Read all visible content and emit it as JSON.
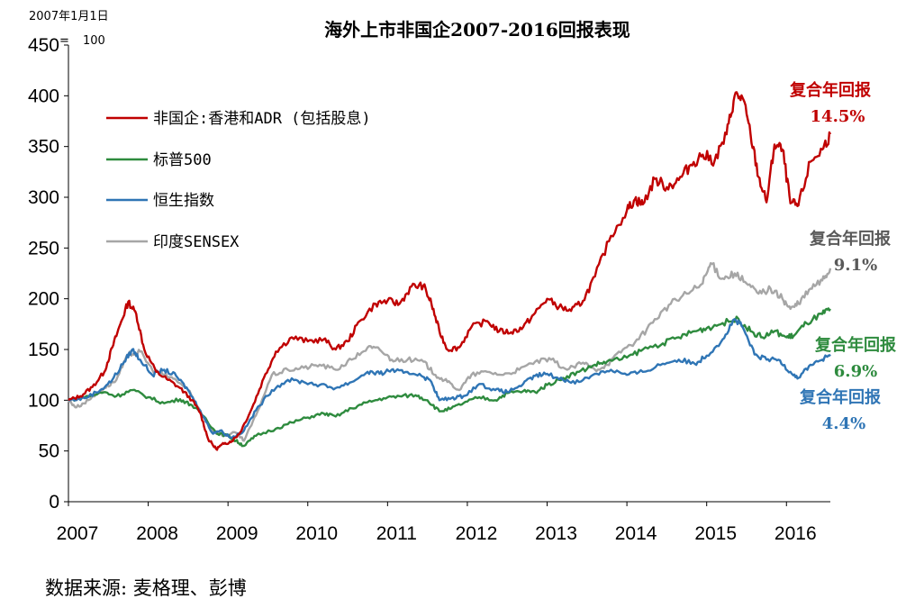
{
  "chart_data": {
    "type": "line",
    "title": "海外上市非国企2007-2016回报表现",
    "ylabel_note_line1": "2007年1月1日",
    "ylabel_note_line2": "=",
    "ylabel_note_value": "100",
    "ylim": [
      0,
      450
    ],
    "yticks": [
      "0",
      "50",
      "100",
      "150",
      "200",
      "250",
      "300",
      "350",
      "400",
      "450"
    ],
    "xlim": [
      2007,
      2016.55
    ],
    "xticks": [
      "2007",
      "2008",
      "2009",
      "2010",
      "2011",
      "2012",
      "2013",
      "2014",
      "2015",
      "2016"
    ],
    "series": [
      {
        "name": "非国企:香港和ADR (包括股息)",
        "color": "#C00000",
        "points": [
          [
            2007,
            100
          ],
          [
            2007.15,
            104
          ],
          [
            2007.3,
            113
          ],
          [
            2007.45,
            128
          ],
          [
            2007.55,
            152
          ],
          [
            2007.65,
            175
          ],
          [
            2007.75,
            197
          ],
          [
            2007.85,
            185
          ],
          [
            2007.95,
            150
          ],
          [
            2008.1,
            128
          ],
          [
            2008.25,
            120
          ],
          [
            2008.4,
            112
          ],
          [
            2008.55,
            100
          ],
          [
            2008.65,
            88
          ],
          [
            2008.75,
            62
          ],
          [
            2008.85,
            52
          ],
          [
            2008.95,
            57
          ],
          [
            2009.05,
            60
          ],
          [
            2009.15,
            68
          ],
          [
            2009.3,
            92
          ],
          [
            2009.45,
            122
          ],
          [
            2009.6,
            148
          ],
          [
            2009.8,
            162
          ],
          [
            2010.0,
            158
          ],
          [
            2010.2,
            160
          ],
          [
            2010.35,
            150
          ],
          [
            2010.5,
            158
          ],
          [
            2010.65,
            178
          ],
          [
            2010.85,
            195
          ],
          [
            2011.0,
            198
          ],
          [
            2011.15,
            195
          ],
          [
            2011.3,
            212
          ],
          [
            2011.45,
            213
          ],
          [
            2011.55,
            195
          ],
          [
            2011.65,
            168
          ],
          [
            2011.75,
            150
          ],
          [
            2011.9,
            152
          ],
          [
            2012.05,
            172
          ],
          [
            2012.25,
            178
          ],
          [
            2012.4,
            168
          ],
          [
            2012.55,
            167
          ],
          [
            2012.7,
            172
          ],
          [
            2012.85,
            186
          ],
          [
            2013.0,
            200
          ],
          [
            2013.15,
            192
          ],
          [
            2013.3,
            188
          ],
          [
            2013.45,
            198
          ],
          [
            2013.6,
            222
          ],
          [
            2013.8,
            262
          ],
          [
            2014.0,
            287
          ],
          [
            2014.1,
            298
          ],
          [
            2014.2,
            293
          ],
          [
            2014.35,
            318
          ],
          [
            2014.5,
            310
          ],
          [
            2014.65,
            317
          ],
          [
            2014.8,
            332
          ],
          [
            2014.95,
            342
          ],
          [
            2015.1,
            336
          ],
          [
            2015.25,
            362
          ],
          [
            2015.35,
            400
          ],
          [
            2015.45,
            398
          ],
          [
            2015.55,
            362
          ],
          [
            2015.65,
            320
          ],
          [
            2015.75,
            295
          ],
          [
            2015.85,
            352
          ],
          [
            2015.95,
            347
          ],
          [
            2016.05,
            294
          ],
          [
            2016.15,
            292
          ],
          [
            2016.3,
            335
          ],
          [
            2016.45,
            347
          ],
          [
            2016.55,
            362
          ]
        ]
      },
      {
        "name": "标普500",
        "color": "#2E8B3E",
        "points": [
          [
            2007,
            100
          ],
          [
            2007.2,
            103
          ],
          [
            2007.45,
            108
          ],
          [
            2007.6,
            104
          ],
          [
            2007.8,
            110
          ],
          [
            2008.0,
            103
          ],
          [
            2008.2,
            97
          ],
          [
            2008.4,
            101
          ],
          [
            2008.55,
            95
          ],
          [
            2008.7,
            84
          ],
          [
            2008.85,
            68
          ],
          [
            2009.0,
            65
          ],
          [
            2009.1,
            60
          ],
          [
            2009.2,
            55
          ],
          [
            2009.35,
            65
          ],
          [
            2009.6,
            72
          ],
          [
            2009.8,
            78
          ],
          [
            2010.0,
            83
          ],
          [
            2010.2,
            87
          ],
          [
            2010.35,
            84
          ],
          [
            2010.55,
            92
          ],
          [
            2010.75,
            98
          ],
          [
            2010.95,
            102
          ],
          [
            2011.15,
            104
          ],
          [
            2011.35,
            105
          ],
          [
            2011.5,
            100
          ],
          [
            2011.65,
            89
          ],
          [
            2011.8,
            92
          ],
          [
            2011.95,
            97
          ],
          [
            2012.15,
            103
          ],
          [
            2012.35,
            100
          ],
          [
            2012.5,
            107
          ],
          [
            2012.7,
            109
          ],
          [
            2012.85,
            108
          ],
          [
            2013.0,
            115
          ],
          [
            2013.2,
            122
          ],
          [
            2013.4,
            128
          ],
          [
            2013.6,
            135
          ],
          [
            2013.75,
            138
          ],
          [
            2014.0,
            142
          ],
          [
            2014.2,
            150
          ],
          [
            2014.45,
            156
          ],
          [
            2014.65,
            162
          ],
          [
            2014.85,
            168
          ],
          [
            2015.0,
            171
          ],
          [
            2015.2,
            176
          ],
          [
            2015.4,
            180
          ],
          [
            2015.55,
            168
          ],
          [
            2015.7,
            162
          ],
          [
            2015.85,
            168
          ],
          [
            2016.0,
            162
          ],
          [
            2016.1,
            164
          ],
          [
            2016.25,
            176
          ],
          [
            2016.45,
            185
          ],
          [
            2016.55,
            190
          ]
        ]
      },
      {
        "name": "恒生指数",
        "color": "#2F75B5",
        "points": [
          [
            2007,
            100
          ],
          [
            2007.2,
            102
          ],
          [
            2007.4,
            110
          ],
          [
            2007.55,
            120
          ],
          [
            2007.7,
            138
          ],
          [
            2007.8,
            150
          ],
          [
            2007.9,
            140
          ],
          [
            2008.05,
            125
          ],
          [
            2008.2,
            130
          ],
          [
            2008.35,
            124
          ],
          [
            2008.5,
            110
          ],
          [
            2008.65,
            90
          ],
          [
            2008.8,
            68
          ],
          [
            2008.9,
            70
          ],
          [
            2009.05,
            63
          ],
          [
            2009.2,
            70
          ],
          [
            2009.35,
            90
          ],
          [
            2009.55,
            110
          ],
          [
            2009.75,
            120
          ],
          [
            2009.95,
            118
          ],
          [
            2010.15,
            115
          ],
          [
            2010.35,
            112
          ],
          [
            2010.55,
            118
          ],
          [
            2010.75,
            128
          ],
          [
            2010.9,
            126
          ],
          [
            2011.05,
            130
          ],
          [
            2011.2,
            127
          ],
          [
            2011.4,
            126
          ],
          [
            2011.55,
            118
          ],
          [
            2011.65,
            100
          ],
          [
            2011.8,
            102
          ],
          [
            2011.95,
            104
          ],
          [
            2012.15,
            116
          ],
          [
            2012.35,
            110
          ],
          [
            2012.5,
            108
          ],
          [
            2012.7,
            116
          ],
          [
            2012.85,
            124
          ],
          [
            2013.0,
            126
          ],
          [
            2013.2,
            120
          ],
          [
            2013.4,
            118
          ],
          [
            2013.6,
            126
          ],
          [
            2013.8,
            130
          ],
          [
            2014.0,
            125
          ],
          [
            2014.2,
            128
          ],
          [
            2014.45,
            136
          ],
          [
            2014.65,
            140
          ],
          [
            2014.85,
            136
          ],
          [
            2015.0,
            144
          ],
          [
            2015.2,
            160
          ],
          [
            2015.35,
            180
          ],
          [
            2015.45,
            172
          ],
          [
            2015.6,
            145
          ],
          [
            2015.75,
            140
          ],
          [
            2015.9,
            140
          ],
          [
            2016.05,
            128
          ],
          [
            2016.15,
            122
          ],
          [
            2016.3,
            135
          ],
          [
            2016.45,
            140
          ],
          [
            2016.55,
            145
          ]
        ]
      },
      {
        "name": "印度SENSEX",
        "color": "#A6A6A6",
        "points": [
          [
            2007,
            100
          ],
          [
            2007.1,
            93
          ],
          [
            2007.25,
            100
          ],
          [
            2007.45,
            112
          ],
          [
            2007.6,
            120
          ],
          [
            2007.75,
            145
          ],
          [
            2007.9,
            148
          ],
          [
            2008.05,
            130
          ],
          [
            2008.2,
            125
          ],
          [
            2008.35,
            120
          ],
          [
            2008.5,
            110
          ],
          [
            2008.65,
            90
          ],
          [
            2008.8,
            70
          ],
          [
            2008.95,
            65
          ],
          [
            2009.1,
            68
          ],
          [
            2009.2,
            60
          ],
          [
            2009.35,
            85
          ],
          [
            2009.55,
            125
          ],
          [
            2009.75,
            130
          ],
          [
            2009.95,
            132
          ],
          [
            2010.15,
            135
          ],
          [
            2010.35,
            130
          ],
          [
            2010.55,
            140
          ],
          [
            2010.75,
            152
          ],
          [
            2010.9,
            150
          ],
          [
            2011.05,
            140
          ],
          [
            2011.25,
            140
          ],
          [
            2011.45,
            138
          ],
          [
            2011.6,
            125
          ],
          [
            2011.75,
            118
          ],
          [
            2011.9,
            110
          ],
          [
            2012.05,
            125
          ],
          [
            2012.25,
            128
          ],
          [
            2012.45,
            125
          ],
          [
            2012.65,
            130
          ],
          [
            2012.85,
            138
          ],
          [
            2013.05,
            140
          ],
          [
            2013.25,
            130
          ],
          [
            2013.45,
            137
          ],
          [
            2013.6,
            130
          ],
          [
            2013.75,
            135
          ],
          [
            2013.95,
            150
          ],
          [
            2014.15,
            160
          ],
          [
            2014.35,
            180
          ],
          [
            2014.55,
            195
          ],
          [
            2014.75,
            205
          ],
          [
            2014.95,
            215
          ],
          [
            2015.05,
            235
          ],
          [
            2015.2,
            220
          ],
          [
            2015.35,
            225
          ],
          [
            2015.5,
            215
          ],
          [
            2015.65,
            205
          ],
          [
            2015.8,
            210
          ],
          [
            2015.95,
            200
          ],
          [
            2016.05,
            190
          ],
          [
            2016.15,
            195
          ],
          [
            2016.3,
            210
          ],
          [
            2016.45,
            218
          ],
          [
            2016.55,
            230
          ]
        ]
      }
    ],
    "legend": [
      {
        "label": "非国企:香港和ADR (包括股息)",
        "color": "#C00000"
      },
      {
        "label": "标普500",
        "color": "#2E8B3E"
      },
      {
        "label": "恒生指数",
        "color": "#2F75B5"
      },
      {
        "label": "印度SENSEX",
        "color": "#A6A6A6"
      }
    ],
    "annotations": [
      {
        "label": "复合年回报",
        "value": "14.5%",
        "color": "#C00000"
      },
      {
        "label": "复合年回报",
        "value": "9.1%",
        "color": "#595959"
      },
      {
        "label": "复合年回报",
        "value": "6.9%",
        "color": "#2E8B3E"
      },
      {
        "label": "复合年回报",
        "value": "4.4%",
        "color": "#2F75B5"
      }
    ],
    "source": "数据来源: 麦格理、彭博"
  }
}
